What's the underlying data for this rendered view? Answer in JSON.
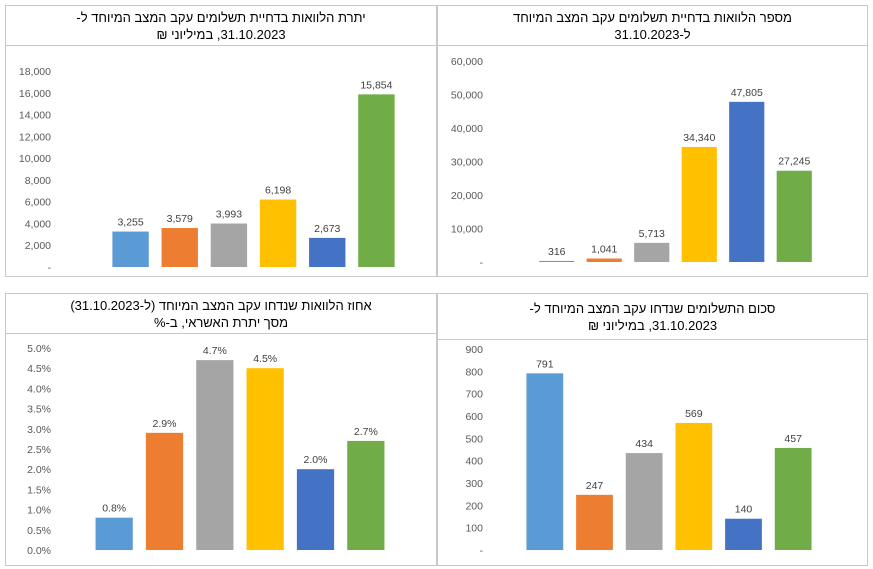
{
  "chart_data": [
    {
      "id": "outstanding-amount",
      "type": "bar",
      "title_lines": [
        "יתרת הלוואות בדחיית תשלומים עקב המצב המיוחד ל-",
        "31.10.2023, במיליוני ₪"
      ],
      "categories": [
        "",
        "",
        "",
        "",
        "",
        ""
      ],
      "values": [
        3255,
        3579,
        3993,
        6198,
        2673,
        15854
      ],
      "value_labels": [
        "3,255",
        "3,579",
        "3,993",
        "6,198",
        "2,673",
        "15,854"
      ],
      "colors": [
        "#5B9BD5",
        "#ED7D31",
        "#A5A5A5",
        "#FFC000",
        "#4472C4",
        "#70AD47"
      ],
      "ylim": [
        0,
        18000
      ],
      "y_ticks": [
        0,
        2000,
        4000,
        6000,
        8000,
        10000,
        12000,
        14000,
        16000,
        18000
      ],
      "y_tick_labels": [
        "-",
        "2,000",
        "4,000",
        "6,000",
        "8,000",
        "10,000",
        "12,000",
        "14,000",
        "16,000",
        "18,000"
      ],
      "grid": false
    },
    {
      "id": "loan-count",
      "type": "bar",
      "title_lines": [
        "מספר הלוואות בדחיית תשלומים עקב המצב המיוחד",
        "ל-31.10.2023"
      ],
      "categories": [
        "",
        "",
        "",
        "",
        "",
        ""
      ],
      "values": [
        316,
        1041,
        5713,
        34340,
        47805,
        27245
      ],
      "value_labels": [
        "316",
        "1,041",
        "5,713",
        "34,340",
        "47,805",
        "27,245"
      ],
      "colors": [
        "#5B9BD5",
        "#ED7D31",
        "#A5A5A5",
        "#FFC000",
        "#4472C4",
        "#70AD47"
      ],
      "ylim": [
        0,
        60000
      ],
      "y_ticks": [
        0,
        10000,
        20000,
        30000,
        40000,
        50000,
        60000
      ],
      "y_tick_labels": [
        "-",
        "10,000",
        "20,000",
        "30,000",
        "40,000",
        "50,000",
        "60,000"
      ],
      "grid": false
    },
    {
      "id": "deferred-share",
      "type": "bar",
      "title_lines": [
        "אחוז הלוואות שנדחו עקב המצב המיוחד (ל-31.10.2023)",
        "מסך יתרת האשראי, ב-%"
      ],
      "categories": [
        "",
        "",
        "",
        "",
        "",
        ""
      ],
      "values": [
        0.8,
        2.9,
        4.7,
        4.5,
        2.0,
        2.7
      ],
      "value_labels": [
        "0.8%",
        "2.9%",
        "4.7%",
        "4.5%",
        "2.0%",
        "2.7%"
      ],
      "colors": [
        "#5B9BD5",
        "#ED7D31",
        "#A5A5A5",
        "#FFC000",
        "#4472C4",
        "#70AD47"
      ],
      "ylim": [
        0,
        5.0
      ],
      "y_ticks": [
        0,
        0.5,
        1.0,
        1.5,
        2.0,
        2.5,
        3.0,
        3.5,
        4.0,
        4.5,
        5.0
      ],
      "y_tick_labels": [
        "0.0%",
        "0.5%",
        "1.0%",
        "1.5%",
        "2.0%",
        "2.5%",
        "3.0%",
        "3.5%",
        "4.0%",
        "4.5%",
        "5.0%"
      ],
      "grid": false
    },
    {
      "id": "deferred-payments",
      "type": "bar",
      "title_lines": [
        "סכום התשלומים שנדחו עקב המצב המיוחד ל-",
        "31.10.2023, במיליוני ₪"
      ],
      "categories": [
        "",
        "",
        "",
        "",
        "",
        ""
      ],
      "values": [
        791,
        247,
        434,
        569,
        140,
        457
      ],
      "value_labels": [
        "791",
        "247",
        "434",
        "569",
        "140",
        "457"
      ],
      "colors": [
        "#5B9BD5",
        "#ED7D31",
        "#A5A5A5",
        "#FFC000",
        "#4472C4",
        "#70AD47"
      ],
      "ylim": [
        0,
        900
      ],
      "y_ticks": [
        0,
        100,
        200,
        300,
        400,
        500,
        600,
        700,
        800,
        900
      ],
      "y_tick_labels": [
        "-",
        "100",
        "200",
        "300",
        "400",
        "500",
        "600",
        "700",
        "800",
        "900"
      ],
      "grid": false
    }
  ]
}
